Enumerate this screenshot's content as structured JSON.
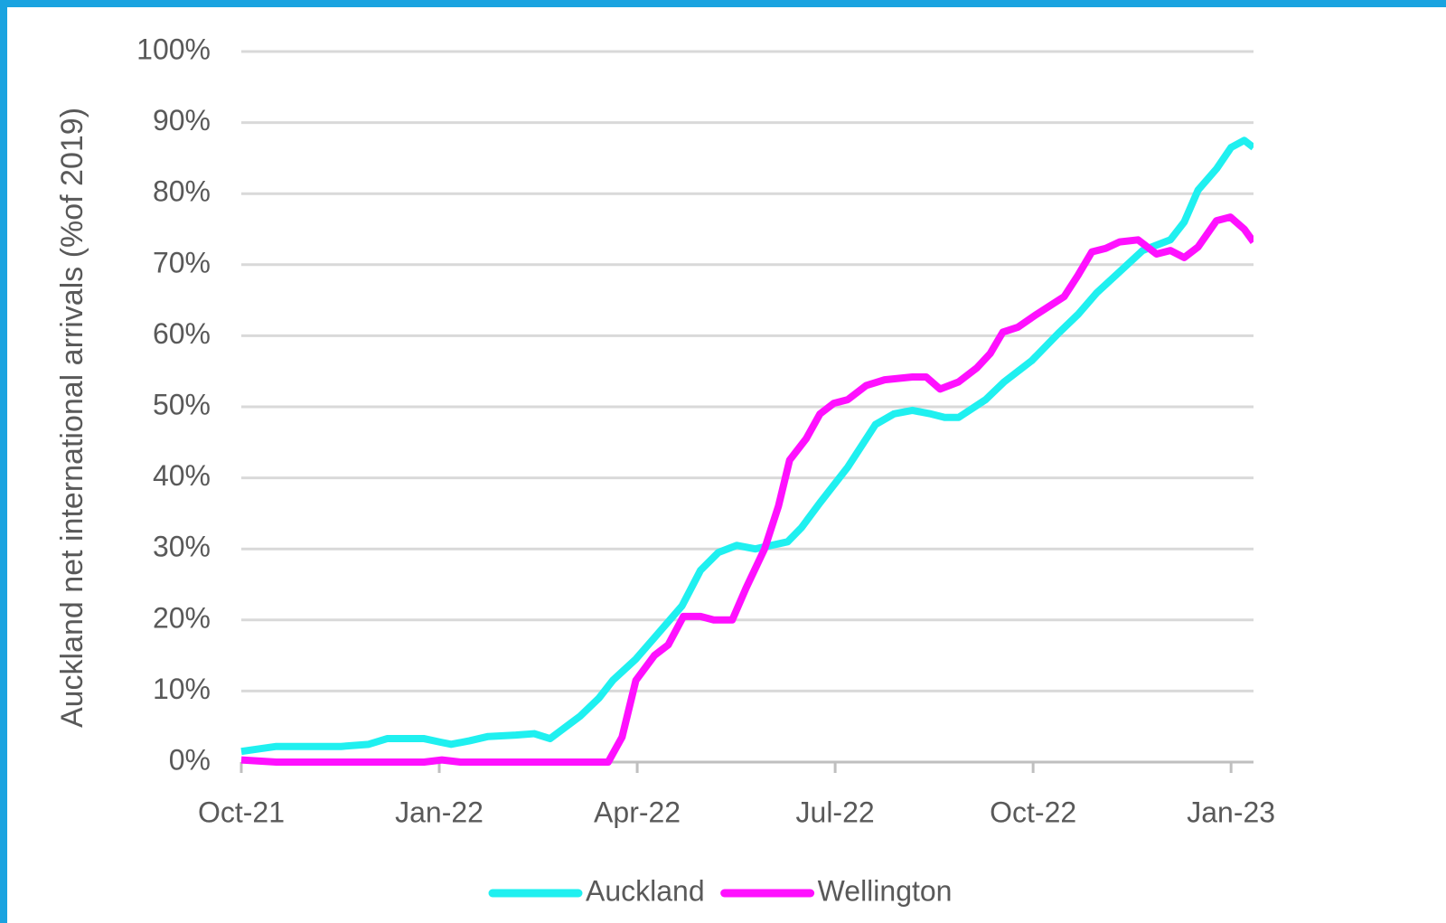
{
  "chart_data": {
    "type": "line",
    "y_label": "Auckland net international arrivals (%of 2019)",
    "xlim": [
      0,
      15.34
    ],
    "xticks": [
      {
        "value": 0,
        "label": "Oct-21"
      },
      {
        "value": 3,
        "label": "Jan-22"
      },
      {
        "value": 6,
        "label": "Apr-22"
      },
      {
        "value": 9,
        "label": "Jul-22"
      },
      {
        "value": 12,
        "label": "Oct-22"
      },
      {
        "value": 15,
        "label": "Jan-23"
      }
    ],
    "ylim": [
      0,
      100
    ],
    "yticks": [
      {
        "value": 0,
        "label": "0%"
      },
      {
        "value": 10,
        "label": "10%"
      },
      {
        "value": 20,
        "label": "20%"
      },
      {
        "value": 30,
        "label": "30%"
      },
      {
        "value": 40,
        "label": "40%"
      },
      {
        "value": 50,
        "label": "50%"
      },
      {
        "value": 60,
        "label": "60%"
      },
      {
        "value": 70,
        "label": "70%"
      },
      {
        "value": 80,
        "label": "80%"
      },
      {
        "value": 90,
        "label": "90%"
      },
      {
        "value": 100,
        "label": "100%"
      }
    ],
    "grid": true,
    "legend": "bottom",
    "series": [
      {
        "name": "Auckland",
        "color": "#1ff0f0",
        "x": [
          0,
          0.53,
          1.51,
          1.93,
          2.21,
          2.77,
          3.02,
          3.18,
          3.46,
          3.74,
          4.16,
          4.44,
          4.68,
          5.14,
          5.42,
          5.63,
          5.98,
          6.26,
          6.68,
          6.96,
          7.23,
          7.51,
          7.79,
          8.28,
          8.49,
          8.77,
          9.19,
          9.61,
          9.89,
          10.17,
          10.45,
          10.66,
          10.87,
          11.28,
          11.56,
          11.98,
          12.4,
          12.68,
          12.96,
          13.31,
          13.66,
          14.08,
          14.29,
          14.5,
          14.78,
          15.0,
          15.2,
          15.34
        ],
        "values": [
          1.5,
          2.2,
          2.2,
          2.5,
          3.3,
          3.3,
          2.8,
          2.5,
          3.0,
          3.6,
          3.8,
          4.0,
          3.3,
          6.5,
          9,
          11.5,
          14.5,
          17.5,
          22,
          27,
          29.5,
          30.5,
          30,
          31,
          33,
          36.5,
          41.5,
          47.5,
          49,
          49.5,
          49,
          48.5,
          48.5,
          51,
          53.5,
          56.5,
          60.5,
          63,
          66,
          69,
          72,
          73.5,
          76,
          80.5,
          83.5,
          86.5,
          87.5,
          86.5
        ]
      },
      {
        "name": "Wellington",
        "color": "#ff10ff",
        "x": [
          0,
          0.53,
          1.93,
          2.77,
          3.04,
          3.32,
          5.56,
          5.77,
          5.98,
          6.26,
          6.47,
          6.7,
          6.96,
          7.16,
          7.44,
          7.65,
          7.93,
          8.14,
          8.31,
          8.56,
          8.77,
          8.98,
          9.19,
          9.47,
          9.75,
          10.17,
          10.38,
          10.59,
          10.87,
          11.15,
          11.35,
          11.54,
          11.77,
          12.05,
          12.47,
          12.68,
          12.89,
          13.1,
          13.31,
          13.59,
          13.87,
          14.08,
          14.29,
          14.5,
          14.78,
          14.99,
          15.2,
          15.34
        ],
        "values": [
          0.3,
          0,
          0,
          0,
          0.3,
          0,
          0,
          3.5,
          11.5,
          15,
          16.5,
          20.5,
          20.5,
          20,
          20,
          24.5,
          30,
          36,
          42.5,
          45.5,
          49,
          50.5,
          51,
          53,
          53.8,
          54.2,
          54.2,
          52.5,
          53.5,
          55.5,
          57.5,
          60.5,
          61.2,
          63,
          65.5,
          68.5,
          71.8,
          72.3,
          73.2,
          73.5,
          71.5,
          72,
          71,
          72.5,
          76.2,
          76.7,
          75,
          73.2
        ]
      }
    ]
  }
}
